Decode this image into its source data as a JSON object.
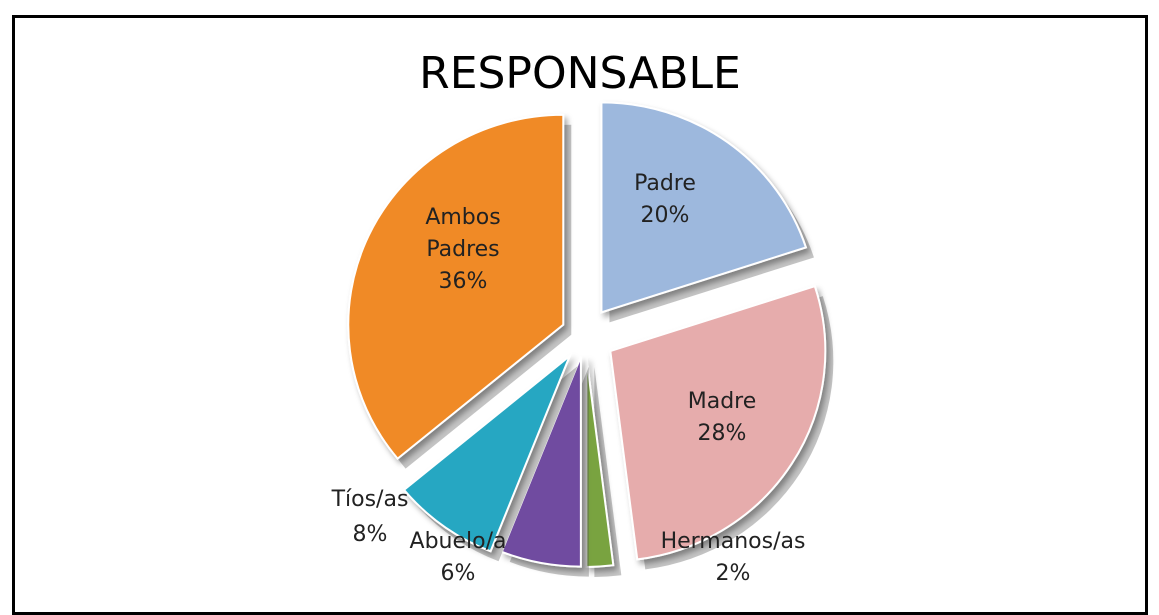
{
  "chart_data": {
    "type": "pie",
    "title": "RESPONSABLE",
    "slices": [
      {
        "label": "Padre",
        "value": 20,
        "display": "20%",
        "color": "#9DB8DD"
      },
      {
        "label": "Madre",
        "value": 28,
        "display": "28%",
        "color": "#E6ACAC"
      },
      {
        "label": "Hermanos/as",
        "value": 2,
        "display": "2%",
        "color": "#79A340"
      },
      {
        "label": "Abuelo/a",
        "value": 6,
        "display": "6%",
        "color": "#6F4BA0"
      },
      {
        "label": "Tíos/as",
        "value": 8,
        "display": "8%",
        "color": "#28A7C2"
      },
      {
        "label": "Ambos Padres",
        "value": 36,
        "display": "36%",
        "color": "#F08A26"
      }
    ],
    "legend": "none",
    "exploded": true,
    "style": "3d"
  }
}
